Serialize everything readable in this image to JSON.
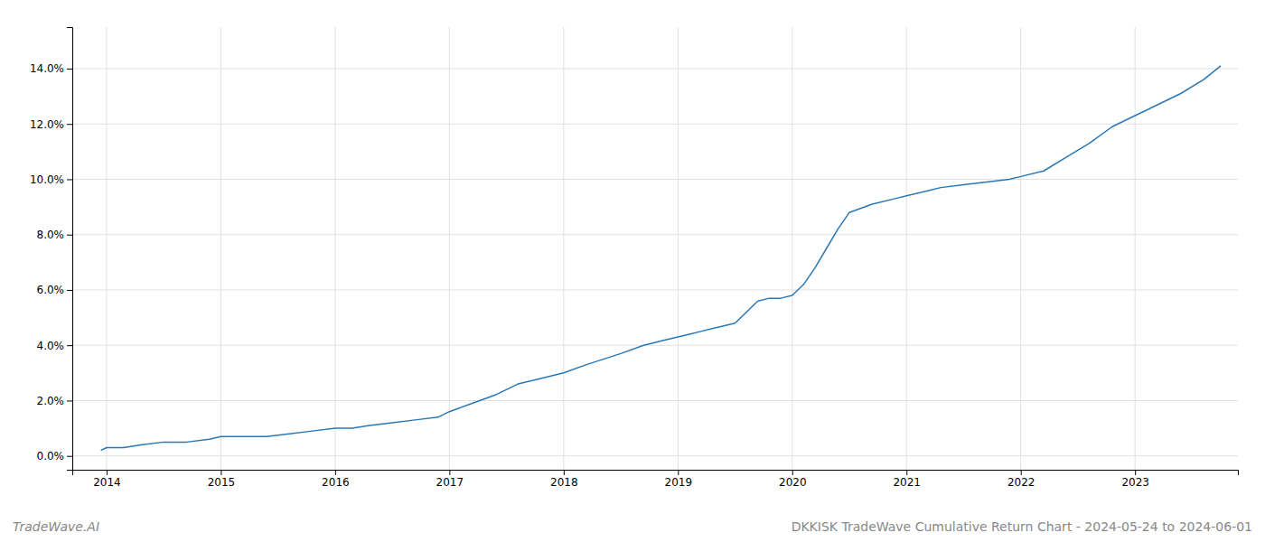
{
  "chart_data": {
    "type": "line",
    "title": "DKKISK TradeWave Cumulative Return Chart - 2024-05-24 to 2024-06-01",
    "annotations": [
      "TradeWave.AI"
    ],
    "color": "#2878b8",
    "x": [
      2013.95,
      2014.0,
      2014.15,
      2014.3,
      2014.5,
      2014.7,
      2014.9,
      2015.0,
      2015.2,
      2015.4,
      2015.6,
      2015.8,
      2016.0,
      2016.15,
      2016.3,
      2016.5,
      2016.7,
      2016.9,
      2017.0,
      2017.2,
      2017.4,
      2017.6,
      2017.8,
      2018.0,
      2018.2,
      2018.5,
      2018.7,
      2018.9,
      2019.0,
      2019.1,
      2019.2,
      2019.3,
      2019.4,
      2019.5,
      2019.55,
      2019.6,
      2019.65,
      2019.7,
      2019.8,
      2019.9,
      2020.0,
      2020.1,
      2020.2,
      2020.3,
      2020.4,
      2020.5,
      2020.7,
      2020.9,
      2021.0,
      2021.1,
      2021.2,
      2021.3,
      2021.5,
      2021.7,
      2021.9,
      2022.0,
      2022.2,
      2022.4,
      2022.6,
      2022.8,
      2023.0,
      2023.2,
      2023.4,
      2023.6,
      2023.75
    ],
    "values": [
      0.002,
      0.003,
      0.003,
      0.004,
      0.005,
      0.005,
      0.006,
      0.007,
      0.007,
      0.007,
      0.008,
      0.009,
      0.01,
      0.01,
      0.011,
      0.012,
      0.013,
      0.014,
      0.016,
      0.019,
      0.022,
      0.026,
      0.028,
      0.03,
      0.033,
      0.037,
      0.04,
      0.042,
      0.043,
      0.044,
      0.045,
      0.046,
      0.047,
      0.048,
      0.05,
      0.052,
      0.054,
      0.056,
      0.057,
      0.057,
      0.058,
      0.062,
      0.068,
      0.075,
      0.082,
      0.088,
      0.091,
      0.093,
      0.094,
      0.095,
      0.096,
      0.097,
      0.098,
      0.099,
      0.1,
      0.101,
      0.103,
      0.108,
      0.113,
      0.119,
      0.123,
      0.127,
      0.131,
      0.136,
      0.141
    ],
    "xlim": [
      2013.7,
      2023.9
    ],
    "ylim": [
      -0.005,
      0.155
    ],
    "xticks": [
      2014,
      2015,
      2016,
      2017,
      2018,
      2019,
      2020,
      2021,
      2022,
      2023
    ],
    "yticks": [
      {
        "value": 0.0,
        "label": "0.0%"
      },
      {
        "value": 0.02,
        "label": "2.0%"
      },
      {
        "value": 0.04,
        "label": "4.0%"
      },
      {
        "value": 0.06,
        "label": "6.0%"
      },
      {
        "value": 0.08,
        "label": "8.0%"
      },
      {
        "value": 0.1,
        "label": "10.0%"
      },
      {
        "value": 0.12,
        "label": "12.0%"
      },
      {
        "value": 0.14,
        "label": "14.0%"
      }
    ],
    "grid": true
  }
}
